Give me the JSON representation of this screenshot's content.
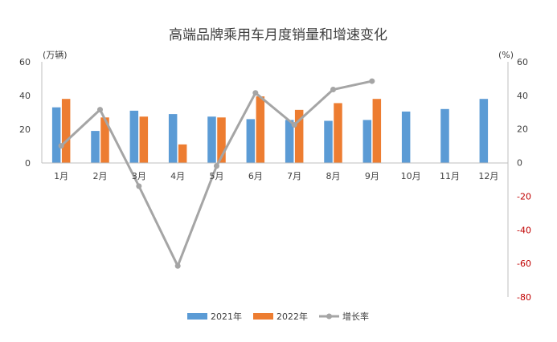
{
  "chart_data": {
    "type": "bar+line",
    "title": "高端品牌乘用车月度销量和增速变化",
    "left_axis": {
      "unit_label": "(万辆)",
      "ylim": [
        0,
        60
      ],
      "ticks": [
        0,
        20,
        40,
        60
      ]
    },
    "right_axis": {
      "unit_label": "(%)",
      "ylim": [
        -80,
        60
      ],
      "ticks": [
        60,
        40,
        20,
        0,
        -20,
        -40,
        -60,
        -80
      ]
    },
    "categories": [
      "1月",
      "2月",
      "3月",
      "4月",
      "5月",
      "6月",
      "7月",
      "8月",
      "9月",
      "10月",
      "11月",
      "12月"
    ],
    "series": [
      {
        "name": "2021年",
        "kind": "bar",
        "axis": "left",
        "color": "#5b9bd5",
        "values": [
          33,
          19,
          31,
          29,
          27.5,
          26,
          25.5,
          25,
          25.5,
          30.5,
          32,
          38
        ]
      },
      {
        "name": "2022年",
        "kind": "bar",
        "axis": "left",
        "color": "#ed7d31",
        "values": [
          38,
          27,
          27.5,
          11,
          27,
          39.5,
          31.5,
          35.5,
          38,
          null,
          null,
          null
        ]
      },
      {
        "name": "增长率",
        "kind": "line",
        "axis": "right",
        "color": "#a5a5a5",
        "values": [
          10,
          31.5,
          -14,
          -61.5,
          -2,
          41.5,
          22.5,
          43.5,
          48.5,
          null,
          null,
          null
        ]
      }
    ],
    "grid": false,
    "legend": "bottom"
  }
}
